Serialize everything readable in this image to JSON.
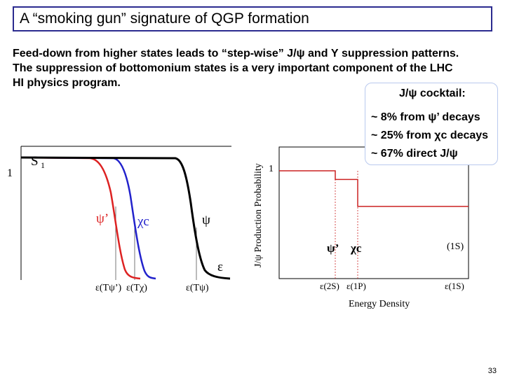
{
  "slide": {
    "title": "A “smoking gun” signature of QGP formation",
    "intro_lines": [
      "Feed-down from higher states leads to “step-wise” J/ψ and Υ suppression patterns.",
      "The suppression of bottomonium states is a very important component of the LHC",
      "HI physics program."
    ],
    "slide_number": "33"
  },
  "cocktail": {
    "heading": "J/ψ cocktail:",
    "rows": [
      "~  8% from ψ’ decays",
      "~ 25% from χc decays",
      "~ 67% direct J/ψ"
    ]
  },
  "left_plot": {
    "y_axis_label": "S",
    "y_axis_subscript": "1",
    "y_tick_label": "1",
    "x_axis_symbol": "ε",
    "curve_labels": {
      "psi_prime": "ψ’",
      "chi_c": "χc",
      "psi": "ψ"
    },
    "colors": {
      "psi_prime": "#dd2222",
      "chi_c": "#2222cc",
      "psi": "#000000"
    },
    "tick_labels": [
      "ε(Tψ’)",
      "ε(Tχ)",
      "ε(Tψ)"
    ]
  },
  "right_plot": {
    "y_axis_label": "J/ψ Production Probability",
    "y_tick_label": "1",
    "x_axis_label": "Energy Density",
    "tick_labels": [
      "ε(2S)",
      "ε(1P)",
      "ε(1S)"
    ],
    "step_labels": {
      "psi_prime": "ψ’",
      "chi_c": "χc",
      "state_1s": "(1S)"
    },
    "step_levels": [
      1.0,
      0.92,
      0.67,
      0.0
    ],
    "line_color": "#cc2222"
  }
}
